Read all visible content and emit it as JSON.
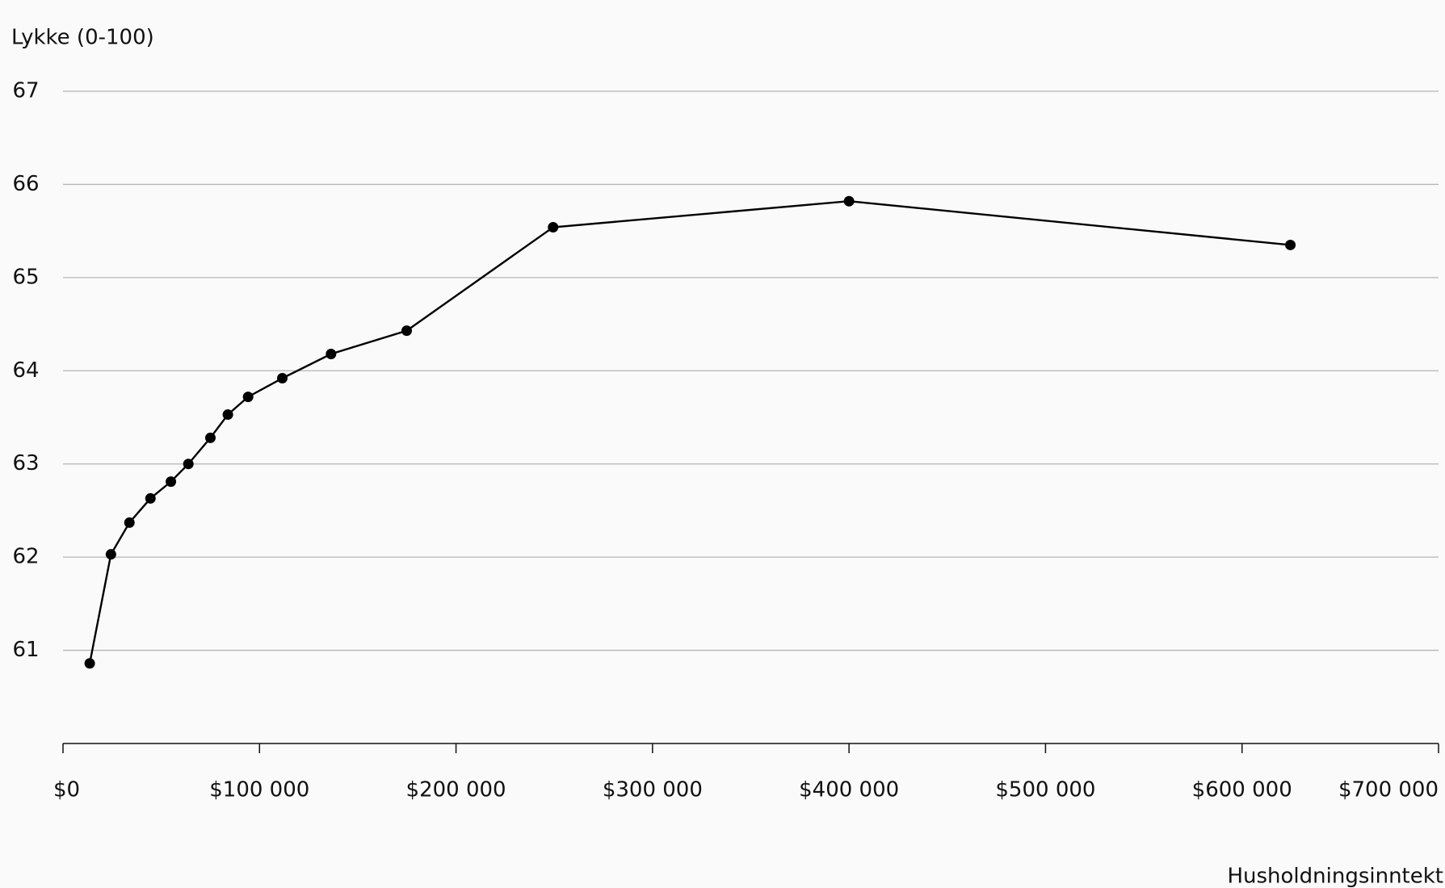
{
  "chart_data": {
    "type": "line",
    "y_label": "Lykke (0-100)",
    "x_label": "Husholdningsinntekt",
    "x": [
      13600,
      24400,
      33800,
      44500,
      54900,
      63800,
      75000,
      83900,
      94200,
      111600,
      136400,
      174900,
      249400,
      400000,
      624600
    ],
    "series": [
      {
        "name": "Lykke",
        "color": "#000000",
        "values": [
          60.86,
          62.03,
          62.37,
          62.63,
          62.81,
          63.0,
          63.28,
          63.53,
          63.72,
          63.92,
          64.18,
          64.43,
          65.54,
          65.82,
          65.35
        ]
      }
    ],
    "xlim": [
      0,
      700000
    ],
    "xticks": [
      {
        "value": 0,
        "label": "$0"
      },
      {
        "value": 100000,
        "label": "$100 000"
      },
      {
        "value": 200000,
        "label": "$200 000"
      },
      {
        "value": 300000,
        "label": "$300 000"
      },
      {
        "value": 400000,
        "label": "$400 000"
      },
      {
        "value": 500000,
        "label": "$500 000"
      },
      {
        "value": 600000,
        "label": "$600 000"
      },
      {
        "value": 700000,
        "label": "$700 000"
      }
    ],
    "ylim": [
      60,
      67
    ],
    "yticks": [
      61,
      62,
      63,
      64,
      65,
      66,
      67
    ],
    "grid": true
  }
}
